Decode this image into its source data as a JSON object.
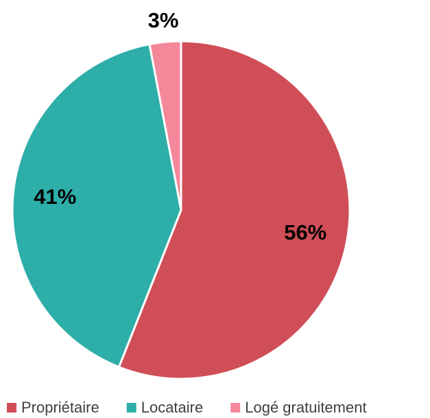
{
  "chart_data": {
    "type": "pie",
    "categories": [
      "Propriétaire",
      "Locataire",
      "Logé gratuitement"
    ],
    "values": [
      56,
      41,
      3
    ],
    "value_labels": [
      "56%",
      "41%",
      "3%"
    ],
    "colors": [
      "#d04e57",
      "#2eaea8",
      "#f4879a"
    ],
    "legend": "bottom"
  }
}
